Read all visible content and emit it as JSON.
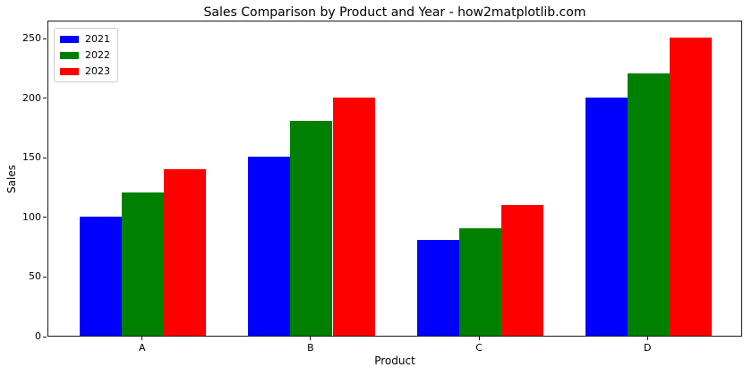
{
  "chart_data": {
    "type": "bar",
    "title": "Sales Comparison by Product and Year - how2matplotlib.com",
    "xlabel": "Product",
    "ylabel": "Sales",
    "categories": [
      "A",
      "B",
      "C",
      "D"
    ],
    "series": [
      {
        "name": "2021",
        "color": "#0000ff",
        "values": [
          100,
          150,
          80,
          200
        ]
      },
      {
        "name": "2022",
        "color": "#008000",
        "values": [
          120,
          180,
          90,
          220
        ]
      },
      {
        "name": "2023",
        "color": "#ff0000",
        "values": [
          140,
          200,
          110,
          250
        ]
      }
    ],
    "yticks": [
      0,
      50,
      100,
      150,
      200,
      250
    ],
    "ylim": [
      0,
      265
    ],
    "grid": false,
    "legend_position": "upper left",
    "bar_group_width_units": 0.75,
    "bar_width_units": 0.25
  }
}
